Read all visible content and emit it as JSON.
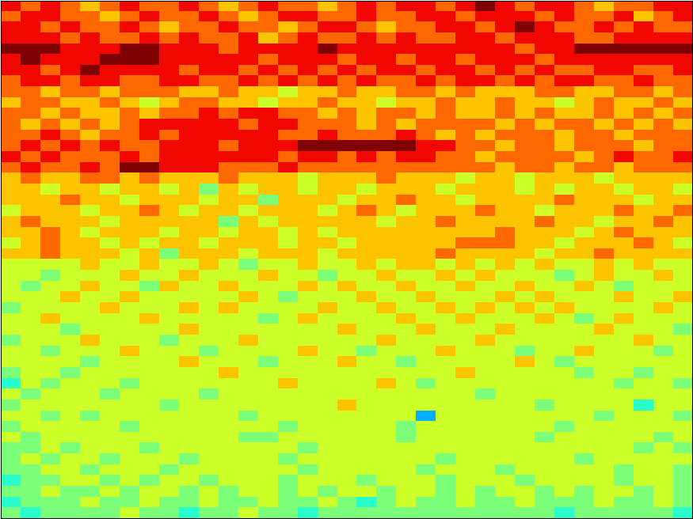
{
  "chart_data": {
    "type": "heatmap",
    "color": "jet",
    "tick_labels": false,
    "color_range": [
      -1,
      9
    ],
    "cells": [
      [
        8,
        7,
        8,
        7,
        6,
        7,
        8,
        7,
        7,
        8,
        7,
        6,
        7,
        8,
        7,
        7,
        6,
        7,
        8,
        7,
        8,
        8,
        7,
        8,
        9,
        8,
        7,
        8,
        8,
        7,
        6,
        7,
        7,
        8,
        8
      ],
      [
        7,
        8,
        8,
        7,
        7,
        6,
        7,
        8,
        7,
        7,
        8,
        7,
        6,
        7,
        8,
        8,
        7,
        7,
        8,
        7,
        7,
        8,
        8,
        7,
        8,
        8,
        8,
        7,
        8,
        7,
        7,
        8,
        6,
        7,
        8
      ],
      [
        8,
        8,
        7,
        8,
        7,
        7,
        8,
        7,
        6,
        7,
        7,
        8,
        7,
        7,
        6,
        7,
        8,
        8,
        7,
        6,
        7,
        7,
        8,
        8,
        7,
        8,
        9,
        8,
        7,
        7,
        8,
        7,
        8,
        7,
        7
      ],
      [
        8,
        8,
        8,
        7,
        8,
        7,
        7,
        8,
        7,
        8,
        7,
        7,
        8,
        6,
        7,
        8,
        7,
        7,
        8,
        7,
        8,
        7,
        7,
        8,
        8,
        7,
        8,
        8,
        8,
        7,
        7,
        8,
        8,
        8,
        8
      ],
      [
        9,
        9,
        9,
        8,
        8,
        8,
        9,
        9,
        8,
        8,
        8,
        7,
        8,
        8,
        8,
        8,
        9,
        8,
        8,
        8,
        8,
        8,
        8,
        8,
        8,
        8,
        7,
        8,
        8,
        9,
        9,
        9,
        9,
        9,
        9
      ],
      [
        8,
        9,
        8,
        8,
        8,
        9,
        9,
        9,
        8,
        8,
        8,
        8,
        8,
        7,
        8,
        8,
        8,
        7,
        8,
        8,
        7,
        8,
        8,
        7,
        8,
        8,
        8,
        7,
        8,
        8,
        8,
        8,
        8,
        8,
        8
      ],
      [
        8,
        8,
        7,
        8,
        9,
        8,
        8,
        8,
        8,
        7,
        8,
        8,
        7,
        8,
        7,
        8,
        7,
        8,
        7,
        8,
        8,
        7,
        8,
        8,
        7,
        8,
        7,
        8,
        7,
        7,
        8,
        8,
        7,
        7,
        8
      ],
      [
        7,
        8,
        8,
        7,
        8,
        8,
        7,
        7,
        8,
        8,
        7,
        7,
        8,
        7,
        8,
        7,
        8,
        7,
        8,
        7,
        7,
        8,
        7,
        8,
        8,
        7,
        8,
        7,
        8,
        8,
        7,
        7,
        8,
        7,
        7
      ],
      [
        7,
        7,
        6,
        7,
        7,
        6,
        7,
        7,
        7,
        6,
        6,
        7,
        6,
        6,
        5,
        6,
        6,
        7,
        6,
        6,
        7,
        7,
        6,
        7,
        6,
        6,
        6,
        7,
        7,
        6,
        6,
        7,
        7,
        6,
        7
      ],
      [
        6,
        7,
        7,
        6,
        6,
        7,
        6,
        5,
        6,
        7,
        7,
        6,
        6,
        5,
        6,
        6,
        7,
        6,
        6,
        5,
        6,
        6,
        7,
        6,
        6,
        7,
        6,
        6,
        5,
        6,
        7,
        6,
        6,
        7,
        6
      ],
      [
        7,
        7,
        6,
        7,
        6,
        6,
        7,
        6,
        7,
        7,
        8,
        7,
        8,
        8,
        7,
        7,
        6,
        7,
        6,
        7,
        7,
        6,
        7,
        6,
        6,
        7,
        6,
        7,
        6,
        6,
        7,
        6,
        7,
        6,
        7
      ],
      [
        7,
        6,
        7,
        6,
        7,
        6,
        7,
        8,
        8,
        8,
        8,
        8,
        7,
        8,
        8,
        7,
        7,
        7,
        6,
        7,
        6,
        7,
        7,
        7,
        7,
        6,
        7,
        6,
        7,
        7,
        6,
        7,
        6,
        7,
        6
      ],
      [
        7,
        7,
        8,
        7,
        6,
        7,
        7,
        8,
        7,
        8,
        8,
        8,
        8,
        8,
        7,
        7,
        8,
        7,
        7,
        7,
        8,
        7,
        6,
        7,
        6,
        7,
        7,
        7,
        6,
        7,
        7,
        6,
        7,
        7,
        7
      ],
      [
        7,
        8,
        7,
        8,
        7,
        8,
        7,
        7,
        8,
        8,
        8,
        7,
        8,
        8,
        8,
        9,
        9,
        9,
        9,
        9,
        9,
        8,
        8,
        7,
        7,
        6,
        7,
        7,
        6,
        7,
        7,
        7,
        6,
        7,
        7
      ],
      [
        8,
        7,
        8,
        7,
        7,
        7,
        8,
        7,
        8,
        8,
        8,
        8,
        8,
        8,
        7,
        8,
        8,
        7,
        8,
        7,
        8,
        8,
        7,
        7,
        6,
        7,
        7,
        7,
        7,
        6,
        7,
        8,
        7,
        7,
        8
      ],
      [
        7,
        8,
        7,
        7,
        8,
        7,
        9,
        9,
        8,
        8,
        8,
        7,
        7,
        7,
        8,
        7,
        7,
        7,
        7,
        7,
        7,
        7,
        7,
        7,
        7,
        6,
        7,
        7,
        6,
        7,
        7,
        6,
        7,
        7,
        7
      ],
      [
        6,
        7,
        6,
        6,
        7,
        7,
        6,
        7,
        6,
        6,
        6,
        7,
        6,
        6,
        6,
        5,
        6,
        6,
        6,
        7,
        6,
        6,
        6,
        5,
        6,
        6,
        5,
        6,
        6,
        6,
        5,
        6,
        6,
        6,
        6
      ],
      [
        6,
        6,
        5,
        6,
        6,
        5,
        6,
        6,
        5,
        6,
        4,
        6,
        5,
        6,
        6,
        5,
        6,
        6,
        5,
        6,
        6,
        6,
        5,
        6,
        6,
        6,
        5,
        6,
        5,
        6,
        6,
        5,
        6,
        6,
        5
      ],
      [
        6,
        6,
        6,
        7,
        6,
        6,
        5,
        6,
        6,
        6,
        5,
        6,
        6,
        4,
        6,
        6,
        6,
        5,
        6,
        6,
        7,
        6,
        6,
        5,
        6,
        6,
        6,
        6,
        7,
        6,
        6,
        6,
        5,
        6,
        6
      ],
      [
        5,
        6,
        6,
        6,
        5,
        6,
        6,
        7,
        6,
        5,
        6,
        6,
        5,
        6,
        6,
        6,
        5,
        6,
        7,
        6,
        5,
        6,
        6,
        6,
        7,
        6,
        6,
        5,
        6,
        6,
        6,
        7,
        6,
        6,
        7
      ],
      [
        6,
        7,
        6,
        6,
        6,
        5,
        6,
        6,
        6,
        6,
        6,
        4,
        6,
        5,
        6,
        6,
        6,
        6,
        6,
        5,
        6,
        6,
        7,
        6,
        6,
        6,
        6,
        7,
        6,
        6,
        5,
        6,
        6,
        7,
        6
      ],
      [
        6,
        6,
        7,
        6,
        5,
        6,
        6,
        6,
        5,
        6,
        6,
        5,
        6,
        6,
        5,
        6,
        5,
        6,
        6,
        6,
        6,
        6,
        6,
        6,
        6,
        7,
        6,
        6,
        6,
        5,
        6,
        7,
        6,
        6,
        6
      ],
      [
        5,
        6,
        7,
        6,
        6,
        5,
        6,
        5,
        6,
        6,
        5,
        6,
        6,
        6,
        5,
        6,
        6,
        5,
        6,
        6,
        6,
        6,
        6,
        7,
        7,
        7,
        6,
        6,
        5,
        6,
        6,
        6,
        7,
        6,
        5
      ],
      [
        6,
        6,
        7,
        6,
        6,
        6,
        5,
        6,
        4,
        6,
        6,
        6,
        5,
        6,
        6,
        6,
        5,
        6,
        6,
        6,
        6,
        6,
        7,
        6,
        6,
        6,
        6,
        5,
        6,
        6,
        7,
        6,
        6,
        6,
        6
      ],
      [
        5,
        5,
        5,
        5,
        6,
        5,
        5,
        6,
        5,
        5,
        6,
        5,
        4,
        5,
        5,
        6,
        5,
        5,
        6,
        5,
        6,
        6,
        5,
        6,
        5,
        6,
        5,
        6,
        5,
        5,
        6,
        5,
        6,
        5,
        5
      ],
      [
        5,
        5,
        4,
        5,
        5,
        5,
        6,
        5,
        5,
        6,
        5,
        5,
        5,
        6,
        5,
        5,
        4,
        5,
        5,
        6,
        5,
        5,
        6,
        5,
        6,
        5,
        5,
        5,
        4,
        5,
        6,
        5,
        5,
        6,
        5
      ],
      [
        5,
        4,
        5,
        5,
        6,
        5,
        5,
        4,
        6,
        5,
        5,
        6,
        5,
        5,
        5,
        6,
        5,
        6,
        5,
        5,
        6,
        5,
        5,
        6,
        5,
        5,
        6,
        5,
        5,
        6,
        5,
        4,
        5,
        5,
        5
      ],
      [
        5,
        5,
        5,
        6,
        5,
        5,
        6,
        5,
        5,
        5,
        5,
        5,
        6,
        5,
        4,
        5,
        5,
        5,
        6,
        5,
        5,
        6,
        5,
        5,
        5,
        6,
        5,
        6,
        5,
        5,
        5,
        6,
        5,
        5,
        6
      ],
      [
        4,
        5,
        5,
        5,
        5,
        6,
        5,
        5,
        5,
        6,
        5,
        6,
        5,
        5,
        5,
        5,
        6,
        5,
        5,
        6,
        5,
        5,
        6,
        5,
        6,
        5,
        6,
        5,
        6,
        5,
        5,
        5,
        5,
        6,
        5
      ],
      [
        5,
        5,
        6,
        5,
        5,
        5,
        5,
        6,
        5,
        5,
        5,
        5,
        5,
        4,
        5,
        6,
        5,
        5,
        5,
        5,
        6,
        5,
        5,
        6,
        5,
        5,
        5,
        6,
        5,
        4,
        5,
        6,
        5,
        5,
        5
      ],
      [
        5,
        5,
        5,
        4,
        5,
        5,
        5,
        5,
        5,
        6,
        5,
        5,
        5,
        5,
        5,
        5,
        5,
        6,
        5,
        5,
        5,
        6,
        5,
        5,
        5,
        6,
        5,
        5,
        5,
        5,
        6,
        5,
        5,
        5,
        4
      ],
      [
        4,
        5,
        5,
        5,
        6,
        5,
        5,
        5,
        4,
        5,
        5,
        5,
        6,
        5,
        5,
        5,
        5,
        5,
        5,
        6,
        5,
        5,
        5,
        5,
        6,
        5,
        5,
        5,
        5,
        5,
        5,
        5,
        6,
        5,
        5
      ],
      [
        5,
        5,
        4,
        5,
        5,
        5,
        6,
        5,
        5,
        5,
        4,
        5,
        5,
        5,
        5,
        6,
        5,
        5,
        4,
        5,
        5,
        5,
        6,
        5,
        5,
        5,
        4,
        5,
        5,
        6,
        5,
        5,
        5,
        4,
        5
      ],
      [
        5,
        5,
        5,
        5,
        4,
        5,
        5,
        5,
        5,
        6,
        5,
        5,
        5,
        4,
        5,
        5,
        5,
        6,
        5,
        5,
        4,
        5,
        5,
        5,
        5,
        5,
        6,
        5,
        4,
        5,
        5,
        5,
        5,
        5,
        5
      ],
      [
        4,
        5,
        5,
        4,
        5,
        5,
        5,
        5,
        5,
        5,
        5,
        6,
        5,
        5,
        5,
        5,
        5,
        5,
        5,
        5,
        5,
        5,
        5,
        6,
        5,
        5,
        5,
        5,
        5,
        4,
        5,
        5,
        4,
        5,
        5
      ],
      [
        3,
        5,
        4,
        5,
        5,
        5,
        4,
        5,
        5,
        5,
        5,
        5,
        5,
        5,
        6,
        5,
        5,
        5,
        5,
        6,
        5,
        4,
        5,
        5,
        5,
        5,
        5,
        5,
        5,
        5,
        5,
        4,
        5,
        5,
        4
      ],
      [
        5,
        4,
        5,
        5,
        5,
        4,
        5,
        5,
        5,
        5,
        4,
        5,
        5,
        5,
        5,
        5,
        5,
        5,
        5,
        5,
        5,
        5,
        5,
        5,
        4,
        5,
        5,
        5,
        5,
        5,
        5,
        5,
        5,
        5,
        5
      ],
      [
        4,
        5,
        5,
        5,
        5,
        5,
        5,
        5,
        4,
        5,
        5,
        5,
        5,
        5,
        5,
        5,
        5,
        6,
        5,
        5,
        5,
        5,
        5,
        5,
        5,
        5,
        5,
        4,
        5,
        5,
        5,
        5,
        3,
        5,
        5
      ],
      [
        5,
        5,
        4,
        5,
        4,
        5,
        5,
        5,
        5,
        5,
        5,
        5,
        4,
        5,
        5,
        5,
        5,
        5,
        5,
        5,
        5,
        2,
        5,
        5,
        5,
        5,
        5,
        5,
        5,
        5,
        4,
        5,
        5,
        5,
        4
      ],
      [
        4,
        5,
        5,
        5,
        5,
        5,
        4,
        5,
        5,
        5,
        5,
        5,
        5,
        5,
        4,
        5,
        5,
        5,
        5,
        5,
        4,
        5,
        5,
        5,
        5,
        5,
        5,
        5,
        4,
        5,
        5,
        5,
        5,
        5,
        5
      ],
      [
        5,
        4,
        5,
        5,
        5,
        5,
        5,
        5,
        5,
        5,
        5,
        5,
        4,
        4,
        5,
        5,
        5,
        5,
        5,
        5,
        4,
        5,
        5,
        5,
        5,
        5,
        5,
        4,
        5,
        5,
        5,
        5,
        5,
        4,
        5
      ],
      [
        4,
        4,
        5,
        4,
        5,
        5,
        5,
        4,
        5,
        5,
        5,
        5,
        5,
        5,
        5,
        4,
        5,
        5,
        5,
        5,
        5,
        5,
        5,
        5,
        5,
        5,
        5,
        5,
        5,
        5,
        5,
        5,
        4,
        5,
        4
      ],
      [
        4,
        5,
        4,
        5,
        5,
        4,
        5,
        5,
        5,
        4,
        5,
        5,
        5,
        5,
        4,
        5,
        5,
        5,
        5,
        5,
        5,
        5,
        4,
        5,
        5,
        5,
        5,
        5,
        5,
        4,
        5,
        5,
        5,
        5,
        5
      ],
      [
        4,
        4,
        5,
        5,
        4,
        5,
        5,
        5,
        4,
        5,
        5,
        5,
        5,
        5,
        5,
        4,
        5,
        5,
        5,
        5,
        5,
        4,
        5,
        5,
        5,
        4,
        5,
        5,
        5,
        5,
        5,
        4,
        5,
        5,
        4
      ],
      [
        3,
        4,
        4,
        5,
        5,
        4,
        5,
        4,
        5,
        5,
        4,
        5,
        5,
        5,
        4,
        5,
        5,
        5,
        4,
        5,
        5,
        5,
        4,
        5,
        5,
        5,
        4,
        5,
        5,
        5,
        5,
        4,
        5,
        5,
        4
      ],
      [
        4,
        4,
        5,
        4,
        4,
        5,
        4,
        5,
        5,
        4,
        5,
        4,
        5,
        5,
        4,
        5,
        4,
        5,
        5,
        4,
        5,
        5,
        4,
        5,
        4,
        5,
        5,
        4,
        5,
        4,
        5,
        5,
        4,
        5,
        4
      ],
      [
        3,
        4,
        4,
        4,
        5,
        4,
        4,
        5,
        4,
        4,
        5,
        4,
        4,
        5,
        4,
        4,
        5,
        4,
        3,
        4,
        5,
        4,
        4,
        5,
        4,
        4,
        5,
        4,
        4,
        4,
        5,
        4,
        4,
        5,
        4
      ],
      [
        4,
        3,
        4,
        4,
        4,
        4,
        5,
        4,
        4,
        3,
        4,
        4,
        5,
        4,
        4,
        3,
        4,
        4,
        4,
        4,
        4,
        4,
        4,
        4,
        4,
        4,
        4,
        4,
        3,
        4,
        4,
        4,
        4,
        4,
        3
      ]
    ]
  }
}
